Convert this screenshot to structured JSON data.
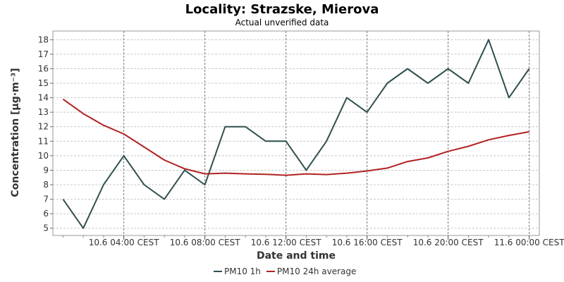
{
  "chart_data": {
    "type": "line",
    "title": "Locality: Strazske, Mierova",
    "subtitle": "Actual unverified data",
    "xlabel": "Date and time",
    "ylabel": "Concentration [µg·m⁻³]",
    "ylim": [
      4.5,
      18.6
    ],
    "yticks": [
      5,
      6,
      7,
      8,
      9,
      10,
      11,
      12,
      13,
      14,
      15,
      16,
      17,
      18
    ],
    "x_range_hours": [
      -0.5,
      23.5
    ],
    "x_major_ticks": [
      {
        "hour": 3,
        "label": "10.6 04:00 CEST"
      },
      {
        "hour": 7,
        "label": "10.6 08:00 CEST"
      },
      {
        "hour": 11,
        "label": "10.6 12:00 CEST"
      },
      {
        "hour": 15,
        "label": "10.6 16:00 CEST"
      },
      {
        "hour": 19,
        "label": "10.6 20:00 CEST"
      },
      {
        "hour": 23,
        "label": "11.6 00:00 CEST"
      }
    ],
    "x_minor_ticks": [
      0,
      1,
      2,
      3,
      4,
      5,
      6,
      7,
      8,
      9,
      10,
      11,
      12,
      13,
      14,
      15,
      16,
      17,
      18,
      19,
      20,
      21,
      22,
      23
    ],
    "grid": true,
    "legend_position": "bottom",
    "series": [
      {
        "name": "PM10 1h",
        "color": "#2f4f4f",
        "x": [
          0,
          1,
          2,
          3,
          4,
          5,
          6,
          7,
          8,
          9,
          10,
          11,
          12,
          13,
          14,
          15,
          16,
          17,
          18,
          19,
          20,
          21,
          22,
          23
        ],
        "values": [
          7,
          5,
          8,
          10,
          8,
          7,
          9,
          8,
          12,
          12,
          11,
          11,
          9,
          11,
          14,
          13,
          15,
          16,
          15,
          16,
          15,
          18,
          14,
          16
        ]
      },
      {
        "name": "PM10 24h average",
        "color": "#b22222",
        "x": [
          0,
          1,
          2,
          3,
          4,
          5,
          6,
          7,
          8,
          9,
          10,
          11,
          12,
          13,
          14,
          15,
          16,
          17,
          18,
          19,
          20,
          21,
          22,
          23
        ],
        "values": [
          13.9,
          12.9,
          12.1,
          11.5,
          10.6,
          9.7,
          9.1,
          8.75,
          8.8,
          8.75,
          8.72,
          8.65,
          8.75,
          8.7,
          8.8,
          8.95,
          9.15,
          9.6,
          9.85,
          10.3,
          10.65,
          11.1,
          11.4,
          11.65
        ]
      }
    ]
  }
}
